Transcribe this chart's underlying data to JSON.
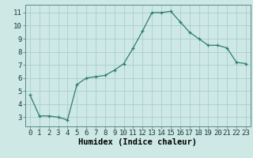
{
  "x": [
    0,
    1,
    2,
    3,
    4,
    5,
    6,
    7,
    8,
    9,
    10,
    11,
    12,
    13,
    14,
    15,
    16,
    17,
    18,
    19,
    20,
    21,
    22,
    23
  ],
  "y": [
    4.7,
    3.1,
    3.1,
    3.0,
    2.8,
    5.5,
    6.0,
    6.1,
    6.2,
    6.6,
    7.1,
    8.3,
    9.6,
    11.0,
    11.0,
    11.1,
    10.3,
    9.5,
    9.0,
    8.5,
    8.5,
    8.3,
    7.2,
    7.1
  ],
  "line_color": "#2e7d6e",
  "marker": "+",
  "marker_size": 3,
  "marker_linewidth": 0.9,
  "line_width": 0.9,
  "bg_color": "#cde8e5",
  "grid_color": "#aacfcc",
  "xlabel": "Humidex (Indice chaleur)",
  "xlim": [
    -0.5,
    23.5
  ],
  "ylim": [
    2.3,
    11.6
  ],
  "yticks": [
    3,
    4,
    5,
    6,
    7,
    8,
    9,
    10,
    11
  ],
  "xtick_labels": [
    "0",
    "1",
    "2",
    "3",
    "4",
    "5",
    "6",
    "7",
    "8",
    "9",
    "10",
    "11",
    "12",
    "13",
    "14",
    "15",
    "16",
    "17",
    "18",
    "19",
    "20",
    "21",
    "22",
    "23"
  ],
  "xlabel_fontsize": 7.5,
  "tick_fontsize": 6.5,
  "spine_color": "#5a8a85"
}
